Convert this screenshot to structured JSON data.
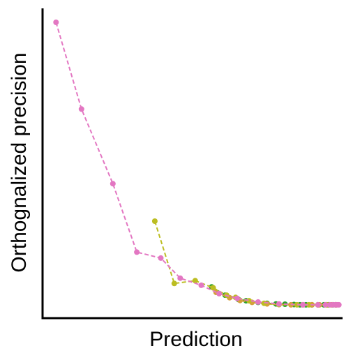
{
  "chart_data": {
    "type": "line",
    "xlabel": "Prediction",
    "ylabel": "Orthognalized precision",
    "x_ticks_shown": false,
    "y_ticks_shown": false,
    "grid": false,
    "legend": "none",
    "xlim": [
      0,
      100
    ],
    "ylim": [
      0,
      100
    ],
    "series": [
      {
        "color": "#2ca02c",
        "points": [
          [
            56.5,
            10.1
          ],
          [
            61,
            7.4
          ],
          [
            65.5,
            6.0
          ],
          [
            68,
            5.6
          ],
          [
            72,
            5.1
          ],
          [
            75,
            4.8
          ],
          [
            78,
            4.6
          ],
          [
            81,
            4.5
          ],
          [
            84,
            4.4
          ],
          [
            86,
            4.3
          ],
          [
            88,
            4.3
          ],
          [
            90,
            4.3
          ],
          [
            92,
            4.3
          ],
          [
            94,
            4.3
          ],
          [
            95.5,
            4.3
          ],
          [
            97,
            4.3
          ],
          [
            98,
            4.3
          ]
        ]
      },
      {
        "color": "#d6a03a",
        "points": [
          [
            58,
            8.3
          ],
          [
            62.5,
            6.6
          ],
          [
            66,
            5.7
          ],
          [
            70,
            5.1
          ],
          [
            75,
            4.6
          ],
          [
            79,
            4.4
          ],
          [
            83,
            4.3
          ],
          [
            87,
            4.3
          ],
          [
            90,
            4.3
          ],
          [
            92.5,
            4.3
          ],
          [
            95,
            4.3
          ],
          [
            96.5,
            4.3
          ],
          [
            98,
            4.3
          ]
        ]
      },
      {
        "color": "#bcbd22",
        "points": [
          [
            37.5,
            31.3
          ],
          [
            44,
            11.2
          ],
          [
            51,
            12.1
          ],
          [
            57,
            9.8
          ],
          [
            61.5,
            7.4
          ],
          [
            64.5,
            6.7
          ],
          [
            69,
            5.6
          ],
          [
            74,
            4.8
          ],
          [
            79,
            4.4
          ],
          [
            85,
            4.3
          ],
          [
            89,
            4.3
          ],
          [
            92,
            4.3
          ],
          [
            95,
            4.3
          ],
          [
            98,
            4.3
          ]
        ]
      },
      {
        "color": "#e377c2",
        "points": [
          [
            4.5,
            95.5
          ],
          [
            13,
            67.5
          ],
          [
            23.5,
            43.4
          ],
          [
            31.5,
            21.3
          ],
          [
            39.5,
            19.4
          ],
          [
            46,
            12.9
          ],
          [
            53,
            10.6
          ],
          [
            59,
            7.9
          ],
          [
            65,
            6.4
          ],
          [
            72,
            5.2
          ],
          [
            79,
            4.6
          ],
          [
            87,
            4.3
          ],
          [
            92,
            4.3
          ],
          [
            94.5,
            4.3
          ],
          [
            96,
            4.3
          ],
          [
            97,
            4.3
          ],
          [
            97.8,
            4.3
          ],
          [
            98.4,
            4.3
          ],
          [
            99,
            4.3
          ]
        ]
      }
    ]
  }
}
